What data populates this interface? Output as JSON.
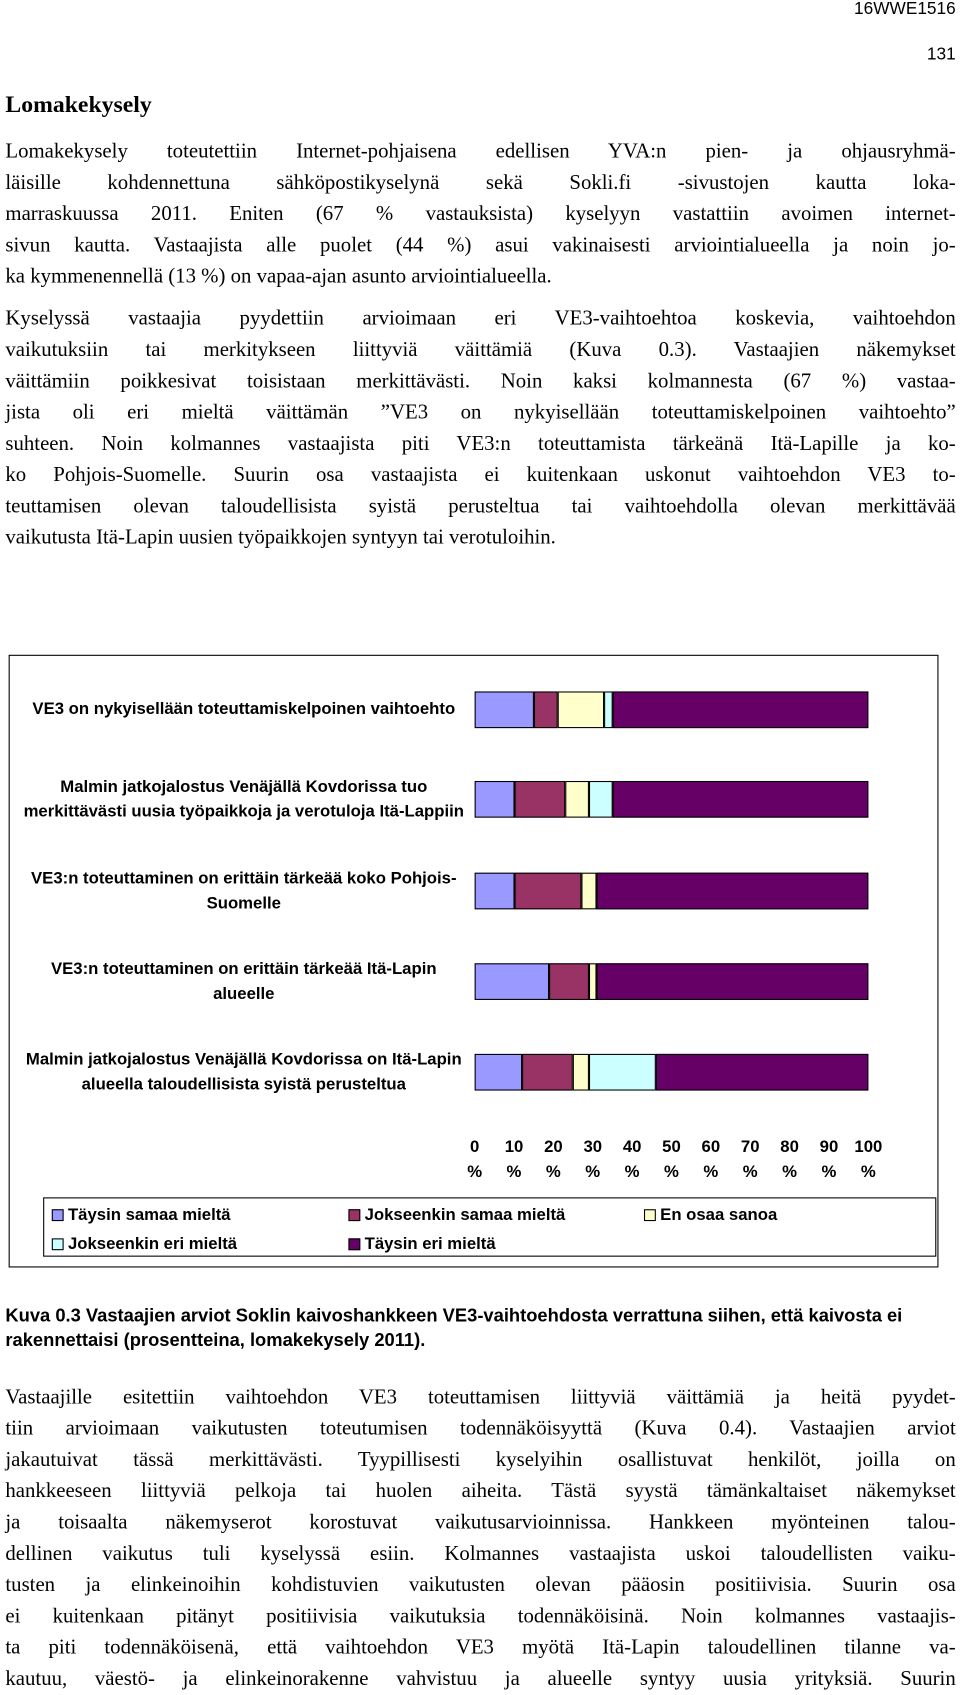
{
  "header": {
    "code": "16WWE1516",
    "page": "131"
  },
  "heading": "Lomakekysely",
  "paragraphs_before": [
    [
      "Lomakekysely toteutettiin Internet-pohjaisena edellisen YVA:n pien- ja ohjausryhmä-",
      "läisille kohdennettuna sähköpostikyselynä sekä Sokli.fi -sivustojen kautta loka-",
      "marraskuussa 2011. Eniten (67 % vastauksista) kyselyyn vastattiin avoimen internet-",
      "sivun kautta. Vastaajista alle puolet (44 %) asui vakinaisesti arviointialueella ja noin jo-",
      "ka kymmenennellä (13 %) on vapaa-ajan asunto arviointialueella."
    ],
    [
      "Kyselyssä vastaajia pyydettiin arvioimaan eri VE3-vaihtoehtoa koskevia, vaihtoehdon",
      "vaikutuksiin tai merkitykseen liittyviä väittämiä (Kuva 0.3). Vastaajien näkemykset",
      "väittämiin poikkesivat toisistaan merkittävästi. Noin kaksi kolmannesta (67 %) vastaa-",
      "jista oli eri mieltä väittämän ”VE3 on nykyisellään toteuttamiskelpoinen vaihtoehto”",
      "suhteen. Noin kolmannes vastaajista piti VE3:n toteuttamista tärkeänä Itä-Lapille ja ko-",
      "ko Pohjois-Suomelle. Suurin osa vastaajista ei kuitenkaan uskonut vaihtoehdon VE3 to-",
      "teuttamisen olevan taloudellisista syistä perusteltua tai vaihtoehdolla olevan merkittävää",
      "vaikutusta Itä-Lapin uusien työpaikkojen syntyyn tai verotuloihin."
    ]
  ],
  "chart_data": {
    "type": "stacked-bar",
    "orientation": "horizontal",
    "categories": [
      "VE3 on nykyisellään toteuttamiskelpoinen vaihtoehto",
      "Malmin jatkojalostus Venäjällä Kovdorissa tuo merkittävästi uusia työpaikkoja ja verotuloja Itä-Lappiin",
      "VE3:n toteuttaminen on erittäin tärkeää koko Pohjois-Suomelle",
      "VE3:n toteuttaminen on erittäin tärkeää Itä-Lapin alueelle",
      "Malmin jatkojalostus Venäjällä Kovdorissa on Itä-Lapin alueella taloudellisista syistä perusteltua"
    ],
    "series": [
      {
        "name": "Täysin samaa mieltä",
        "color": "#9999ff",
        "values": [
          15,
          10,
          10,
          19,
          12
        ]
      },
      {
        "name": "Jokseenkin samaa mieltä",
        "color": "#993366",
        "values": [
          6,
          13,
          17,
          10,
          13
        ]
      },
      {
        "name": "En osaa sanoa",
        "color": "#ffffcc",
        "values": [
          12,
          6,
          4,
          2,
          4
        ]
      },
      {
        "name": "Jokseenkin eri mieltä",
        "color": "#ccffff",
        "values": [
          2,
          6,
          0,
          0,
          17
        ]
      },
      {
        "name": "Täysin eri mieltä",
        "color": "#660066",
        "values": [
          65,
          65,
          69,
          69,
          54
        ]
      }
    ],
    "xlim": [
      0,
      100
    ],
    "xticks": [
      {
        "value": 0,
        "label": "0 %"
      },
      {
        "value": 10,
        "label": "10 %"
      },
      {
        "value": 20,
        "label": "20 %"
      },
      {
        "value": 30,
        "label": "30 %"
      },
      {
        "value": 40,
        "label": "40 %"
      },
      {
        "value": 50,
        "label": "50 %"
      },
      {
        "value": 60,
        "label": "60 %"
      },
      {
        "value": 70,
        "label": "70 %"
      },
      {
        "value": 80,
        "label": "80 %"
      },
      {
        "value": 90,
        "label": "90 %"
      },
      {
        "value": 100,
        "label": "100 %"
      }
    ],
    "legend": "bottom"
  },
  "caption": "Kuva 0.3 Vastaajien arviot Soklin kaivoshankkeen VE3-vaihtoehdosta verrattuna siihen, että kaivosta ei rakennettaisi (prosentteina, lomakekysely 2011).",
  "paragraphs_after": [
    [
      "Vastaajille esitettiin vaihtoehdon VE3 toteuttamisen liittyviä väittämiä ja heitä pyydet-",
      "tiin arvioimaan vaikutusten toteutumisen todennäköisyyttä (Kuva 0.4). Vastaajien arviot",
      "jakautuivat tässä merkittävästi. Tyypillisesti kyselyihin osallistuvat henkilöt, joilla on",
      "hankkeeseen liittyviä pelkoja tai huolen aiheita. Tästä syystä tämänkaltaiset näkemykset",
      "ja toisaalta näkemyserot korostuvat vaikutusarvioinnissa. Hankkeen myönteinen talou-",
      "dellinen vaikutus tuli kyselyssä esiin. Kolmannes vastaajista uskoi taloudellisten vaiku-",
      "tusten ja elinkeinoihin kohdistuvien vaikutusten olevan pääosin positiivisia. Suurin osa",
      "ei kuitenkaan pitänyt positiivisia vaikutuksia todennäköisinä. Noin kolmannes vastaajis-",
      "ta piti todennäköisenä, että vaihtoehdon VE3 myötä Itä-Lapin taloudellinen tilanne va-",
      "kautuu, väestö- ja elinkeinorakenne vahvistuu ja alueelle syntyy uusia yrityksiä. Suurin"
    ]
  ]
}
